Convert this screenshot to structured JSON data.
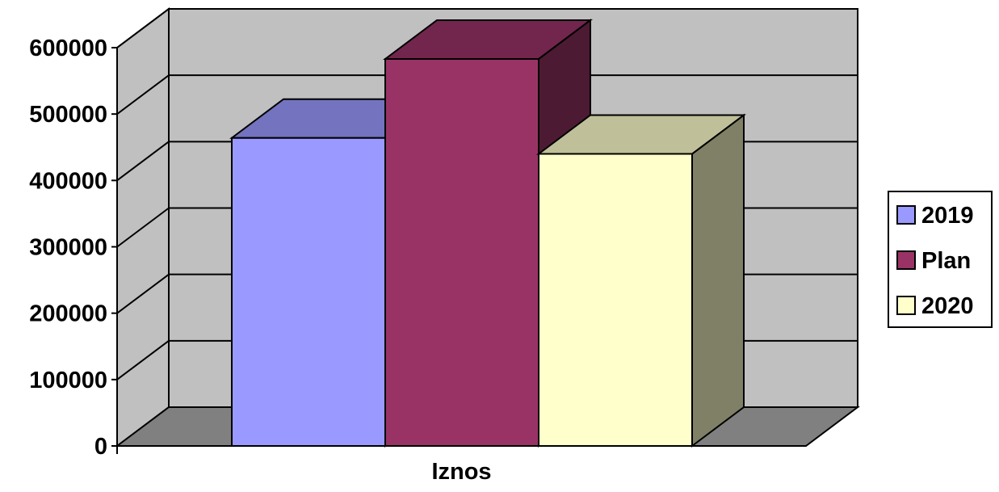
{
  "chart_data": {
    "type": "bar",
    "categories": [
      "Iznos"
    ],
    "series": [
      {
        "name": "2019",
        "values": [
          464000
        ],
        "color": "#9999FF"
      },
      {
        "name": "Plan",
        "values": [
          583000
        ],
        "color": "#993366"
      },
      {
        "name": "2020",
        "values": [
          440000
        ],
        "color": "#FFFFCC"
      }
    ],
    "ylim": [
      0,
      600000
    ],
    "yticks": [
      "0",
      "100000",
      "200000",
      "300000",
      "400000",
      "500000",
      "600000"
    ],
    "xlabel": "",
    "ylabel": "",
    "title": "",
    "grid": true,
    "legend": "right",
    "style": "3d-column",
    "wall_color": "#C0C0C0",
    "floor_color": "#808080"
  }
}
